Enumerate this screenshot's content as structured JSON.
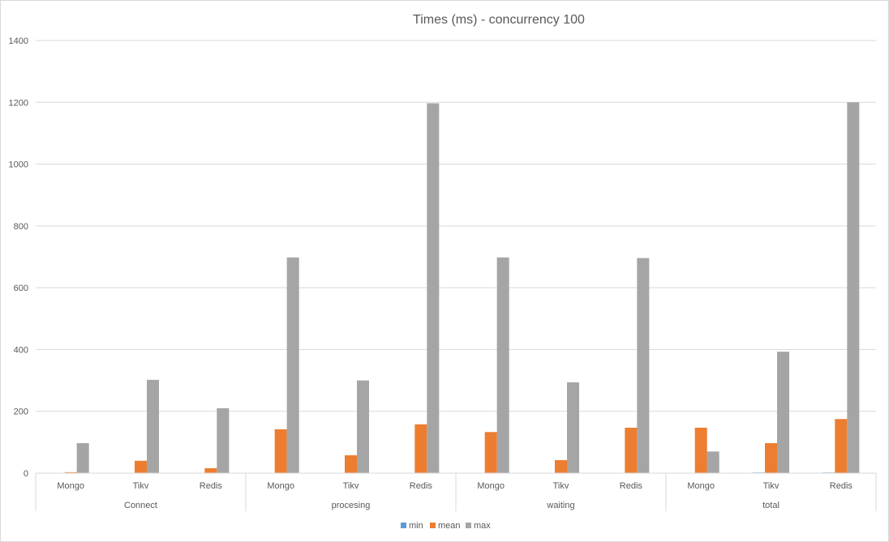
{
  "chart_data": {
    "type": "bar",
    "title": "Times (ms) - concurrency 100",
    "xlabel": "",
    "ylabel": "",
    "ylim": [
      0,
      1400
    ],
    "yticks": [
      0,
      200,
      400,
      600,
      800,
      1000,
      1200,
      1400
    ],
    "grid": true,
    "legend_position": "bottom",
    "groups": [
      {
        "label": "Connect",
        "categories": [
          "Mongo",
          "Tikv",
          "Redis"
        ]
      },
      {
        "label": "procesing",
        "categories": [
          "Mongo",
          "Tikv",
          "Redis"
        ]
      },
      {
        "label": "waiting",
        "categories": [
          "Mongo",
          "Tikv",
          "Redis"
        ]
      },
      {
        "label": "total",
        "categories": [
          "Mongo",
          "Tikv",
          "Redis"
        ]
      }
    ],
    "series": [
      {
        "name": "min",
        "color": "#5b9bd5",
        "values": [
          0,
          0,
          0,
          0,
          0,
          0,
          0,
          0,
          0,
          0,
          2,
          2
        ]
      },
      {
        "name": "mean",
        "color": "#ed7d31",
        "values": [
          3,
          40,
          16,
          142,
          58,
          158,
          133,
          42,
          147,
          147,
          97,
          175
        ]
      },
      {
        "name": "max",
        "color": "#a5a5a5",
        "values": [
          97,
          302,
          210,
          698,
          300,
          1197,
          698,
          294,
          696,
          70,
          393,
          1200
        ]
      }
    ]
  }
}
